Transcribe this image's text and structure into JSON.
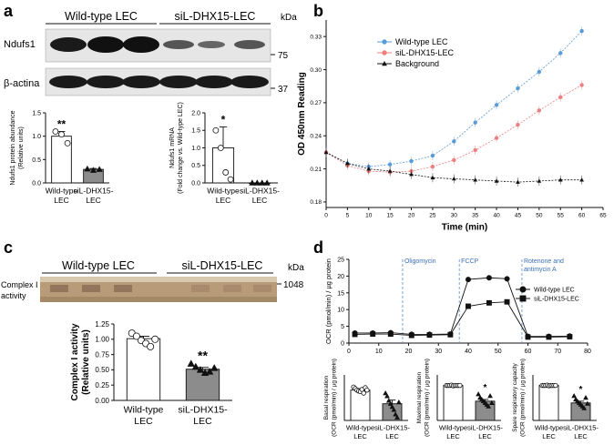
{
  "panels": {
    "a": {
      "letter": "a",
      "groups": [
        "Wild-type LEC",
        "siL-DHX15-LEC"
      ],
      "kda_label": "kDa",
      "blots": [
        {
          "name": "Ndufs1",
          "kda": "75"
        },
        {
          "name": "β-actina",
          "kda": "37"
        }
      ]
    },
    "b": {
      "letter": "b"
    },
    "c": {
      "letter": "c",
      "groups": [
        "Wild-type LEC",
        "siL-DHX15-LEC"
      ],
      "kda_label": "kDa",
      "blot_label_1": "Complex I",
      "blot_label_2": "activity",
      "kda": "1048"
    },
    "d": {
      "letter": "d",
      "annotations": [
        "Oligomycin",
        "FCCP",
        "Rotenone and",
        "antimycin A"
      ]
    }
  },
  "chart_data": [
    {
      "id": "a-protein",
      "type": "bar",
      "categories": [
        "Wild-type LEC",
        "siL-DHX15-LEC"
      ],
      "category_lines": [
        [
          "Wild-type",
          "LEC"
        ],
        [
          "siL-DHX15-",
          "LEC"
        ]
      ],
      "values": [
        1.0,
        0.29
      ],
      "errors": [
        0.1,
        0.02
      ],
      "points": [
        [
          1.1,
          1.04,
          0.85
        ],
        [
          0.3,
          0.27,
          0.29
        ]
      ],
      "bar_colors": [
        "#ffffff",
        "#8c8c8c"
      ],
      "markers": [
        "circle",
        "triangle"
      ],
      "ylabel": [
        "Ndufs1 protein abundance",
        "(Relative units)"
      ],
      "ylim": [
        0,
        1.5
      ],
      "yticks": [
        "0.0",
        "0.5",
        "1.0",
        "1.5"
      ],
      "significance": [
        {
          "index": 0,
          "text": "**"
        }
      ]
    },
    {
      "id": "a-mrna",
      "type": "bar",
      "categories": [
        "Wild-type LEC",
        "siL-DHX15-LEC"
      ],
      "category_lines": [
        [
          "Wild-type",
          "LEC"
        ],
        [
          "siL-DHX15-",
          "LEC"
        ]
      ],
      "values": [
        1.0,
        0.0
      ],
      "errors": [
        0.6,
        0.0
      ],
      "points": [
        [
          1.5,
          1.0,
          0.3,
          0.1
        ],
        [
          0.0,
          0.0,
          0.0,
          0.0
        ]
      ],
      "bar_colors": [
        "#ffffff",
        "#8c8c8c"
      ],
      "markers": [
        "circle",
        "triangle"
      ],
      "ylabel": [
        "Ndufs1 mRNA",
        "(Fold change vs. Wild-type LEC)"
      ],
      "ylim": [
        0,
        2.0
      ],
      "yticks": [
        "0.0",
        "0.5",
        "1.0",
        "1.5",
        "2.0"
      ],
      "significance": [
        {
          "index": 0,
          "text": "*"
        }
      ]
    },
    {
      "id": "b-timecourse",
      "type": "line",
      "xlabel": "Time (min)",
      "ylabel": "OD 450nm Reading",
      "xlim": [
        0,
        65
      ],
      "ylim": [
        0.175,
        0.345
      ],
      "xticks": [
        "0",
        "5",
        "10",
        "15",
        "20",
        "25",
        "30",
        "35",
        "40",
        "45",
        "50",
        "55",
        "60",
        "65"
      ],
      "yticks": [
        "0.18",
        "0.21",
        "0.24",
        "0.27",
        "0.30",
        "0.33"
      ],
      "legend_position": "top-left",
      "series": [
        {
          "name": "Wild-type LEC",
          "color": "#5b9bd5",
          "marker": "circle",
          "x": [
            0,
            5,
            10,
            15,
            20,
            25,
            30,
            35,
            40,
            45,
            50,
            55,
            60
          ],
          "y": [
            0.225,
            0.215,
            0.212,
            0.214,
            0.217,
            0.222,
            0.235,
            0.252,
            0.268,
            0.283,
            0.298,
            0.315,
            0.335
          ]
        },
        {
          "name": "siL-DHX15-LEC",
          "color": "#ef7f7f",
          "marker": "circle",
          "x": [
            0,
            5,
            10,
            15,
            20,
            25,
            30,
            35,
            40,
            45,
            50,
            55,
            60
          ],
          "y": [
            0.225,
            0.213,
            0.208,
            0.207,
            0.208,
            0.212,
            0.218,
            0.227,
            0.238,
            0.25,
            0.263,
            0.275,
            0.286
          ]
        },
        {
          "name": "Background",
          "color": "#111111",
          "marker": "triangle",
          "x": [
            0,
            5,
            10,
            15,
            20,
            25,
            30,
            35,
            40,
            45,
            50,
            55,
            60
          ],
          "y": [
            0.225,
            0.215,
            0.21,
            0.208,
            0.205,
            0.202,
            0.201,
            0.2,
            0.199,
            0.198,
            0.199,
            0.2,
            0.2
          ]
        }
      ]
    },
    {
      "id": "c-complexI",
      "type": "bar",
      "categories": [
        "Wild-type LEC",
        "siL-DHX15-LEC"
      ],
      "category_lines": [
        [
          "Wild-type",
          "LEC"
        ],
        [
          "siL-DHX15-",
          "LEC"
        ]
      ],
      "values": [
        1.01,
        0.51
      ],
      "errors": [
        0.04,
        0.03
      ],
      "points": [
        [
          1.1,
          1.05,
          0.98,
          0.93,
          0.88,
          1.0
        ],
        [
          0.6,
          0.55,
          0.5,
          0.45,
          0.47,
          0.53
        ]
      ],
      "bar_colors": [
        "#ffffff",
        "#8c8c8c"
      ],
      "markers": [
        "circle",
        "triangle"
      ],
      "ylabel": [
        "Complex I activity",
        "(Relative units)"
      ],
      "ylim": [
        0,
        1.25
      ],
      "yticks": [
        "0.00",
        "0.25",
        "0.50",
        "0.75",
        "1.00",
        "1.25"
      ],
      "significance": [
        {
          "index": 1,
          "text": "**"
        }
      ]
    },
    {
      "id": "d-ocr",
      "type": "line",
      "xlabel": "",
      "ylabel": "OCR (pmol/min) / µg protein",
      "xlim": [
        0,
        80
      ],
      "ylim": [
        0,
        25
      ],
      "xticks": [
        "0",
        "10",
        "20",
        "30",
        "40",
        "50",
        "60",
        "70",
        "80"
      ],
      "yticks": [
        "0",
        "5",
        "10",
        "15",
        "20",
        "25"
      ],
      "legend_position": "right",
      "vlines": [
        {
          "x": 18,
          "label_index": 0
        },
        {
          "x": 37,
          "label_index": 1
        },
        {
          "x": 58,
          "label_index": 2
        }
      ],
      "series": [
        {
          "name": "Wild-type LEC",
          "color": "#111111",
          "marker": "circle",
          "x": [
            2,
            8,
            14,
            21,
            27,
            34,
            40,
            47,
            53,
            60,
            67,
            74
          ],
          "y": [
            3.0,
            3.0,
            3.1,
            2.6,
            2.6,
            2.7,
            19.0,
            19.5,
            19.2,
            2.0,
            2.0,
            2.1
          ]
        },
        {
          "name": "siL-DHX15-LEC",
          "color": "#111111",
          "marker": "square",
          "x": [
            2,
            8,
            14,
            21,
            27,
            34,
            40,
            47,
            53,
            60,
            67,
            74
          ],
          "y": [
            2.6,
            2.7,
            2.7,
            2.3,
            2.4,
            2.5,
            11.0,
            12.0,
            12.3,
            1.8,
            1.8,
            1.9
          ]
        }
      ]
    },
    {
      "id": "d-basal",
      "type": "bar",
      "categories": [
        "Wild-type LEC",
        "siL-DHX15-LEC"
      ],
      "category_lines": [
        [
          "Wild-type",
          "LEC"
        ],
        [
          "siL-DHX15-",
          "LEC"
        ]
      ],
      "values": [
        1.0,
        0.55
      ],
      "errors": [
        0.05,
        0.12
      ],
      "points": [
        [
          1.1,
          1.05,
          1.0,
          0.97,
          0.95,
          1.02,
          0.9,
          1.08,
          1.0
        ],
        [
          0.9,
          0.8,
          0.65,
          0.55,
          0.45,
          0.35,
          0.2,
          0.1,
          0.6
        ]
      ],
      "bar_colors": [
        "#ffffff",
        "#8c8c8c"
      ],
      "markers": [
        "circle",
        "triangle"
      ],
      "ylabel": [
        "Basal respiration",
        "(OCR (pmol/min) / µg protein)"
      ],
      "ylim": [
        0,
        1.5
      ],
      "yticks": [],
      "significance": []
    },
    {
      "id": "d-maximal",
      "type": "bar",
      "categories": [
        "Wild-type LEC",
        "siL-DHX15-LEC"
      ],
      "category_lines": [
        [
          "Wild-type",
          "LEC"
        ],
        [
          "siL-DHX15-",
          "LEC"
        ]
      ],
      "values": [
        1.0,
        0.55
      ],
      "errors": [
        0.02,
        0.05
      ],
      "points": [
        [
          1.0,
          1.0,
          1.0,
          1.01,
          0.99,
          1.0,
          1.0,
          1.0,
          1.0
        ],
        [
          0.75,
          0.65,
          0.6,
          0.55,
          0.5,
          0.45,
          0.4,
          0.7,
          0.5
        ]
      ],
      "bar_colors": [
        "#ffffff",
        "#8c8c8c"
      ],
      "markers": [
        "circle",
        "triangle"
      ],
      "ylabel": [
        "Maximal respiration",
        "(OCR (pmol/min) / µg protein)"
      ],
      "ylim": [
        0,
        1.3
      ],
      "yticks": [],
      "significance": [
        {
          "index": 1,
          "text": "*"
        }
      ]
    },
    {
      "id": "d-spare",
      "type": "bar",
      "categories": [
        "Wild-type LEC",
        "siL-DHX15-LEC"
      ],
      "category_lines": [
        [
          "Wild-type",
          "LEC"
        ],
        [
          "siL-DHX15-",
          "LEC"
        ]
      ],
      "values": [
        1.0,
        0.5
      ],
      "errors": [
        0.02,
        0.05
      ],
      "points": [
        [
          1.0,
          1.0,
          1.0,
          1.01,
          0.99,
          1.0,
          1.0,
          1.0,
          1.0
        ],
        [
          0.7,
          0.6,
          0.55,
          0.5,
          0.45,
          0.4,
          0.35,
          0.65,
          0.48
        ]
      ],
      "bar_colors": [
        "#ffffff",
        "#8c8c8c"
      ],
      "markers": [
        "circle",
        "triangle"
      ],
      "ylabel": [
        "Spare respiratory capacity",
        "(OCR (pmol/min) / µg protein)"
      ],
      "ylim": [
        0,
        1.3
      ],
      "yticks": [],
      "significance": [
        {
          "index": 1,
          "text": "*"
        }
      ]
    }
  ]
}
